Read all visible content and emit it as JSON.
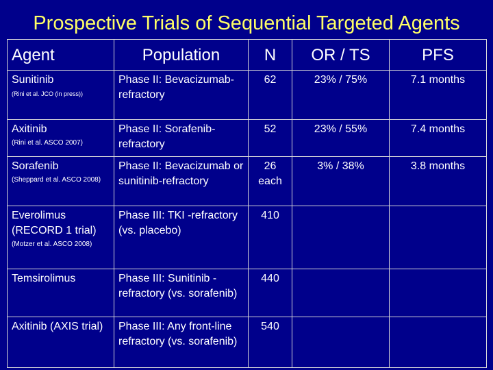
{
  "title": "Prospective Trials of Sequential Targeted Agents",
  "colors": {
    "background": "#00008b",
    "title": "#ffff66",
    "text": "#ffffff",
    "grid": "#d8d8d8"
  },
  "headers": {
    "agent": "Agent",
    "population": "Population",
    "n": "N",
    "or_ts": "OR / TS",
    "pfs": "PFS"
  },
  "rows": [
    {
      "agent": "Sunitinib",
      "ref": "(Rini et al. JCO (in press))",
      "population": "Phase II: Bevacizumab-refractory",
      "n": "62",
      "or_ts": "23% / 75%",
      "pfs": "7.1 months"
    },
    {
      "agent": "Axitinib",
      "ref": "(Rini et al. ASCO 2007)",
      "population": "Phase II: Sorafenib-refractory",
      "n": "52",
      "or_ts": "23% / 55%",
      "pfs": "7.4 months"
    },
    {
      "agent": "Sorafenib",
      "ref": "(Sheppard et al. ASCO 2008)",
      "population": "Phase II: Bevacizumab or sunitinib-refractory",
      "n": "26 each",
      "or_ts": "3% / 38%",
      "pfs": "3.8 months"
    },
    {
      "agent": "Everolimus (RECORD 1 trial)",
      "ref": "(Motzer et al. ASCO 2008)",
      "population": "Phase III: TKI -refractory (vs. placebo)",
      "n": "410",
      "or_ts": "",
      "pfs": ""
    },
    {
      "agent": "Temsirolimus",
      "ref": "",
      "population": "Phase III: Sunitinib -refractory (vs. sorafenib)",
      "n": "440",
      "or_ts": "",
      "pfs": ""
    },
    {
      "agent": "Axitinib (AXIS trial)",
      "ref": "",
      "population": "Phase III: Any front-line refractory (vs. sorafenib)",
      "n": "540",
      "or_ts": "",
      "pfs": ""
    }
  ]
}
